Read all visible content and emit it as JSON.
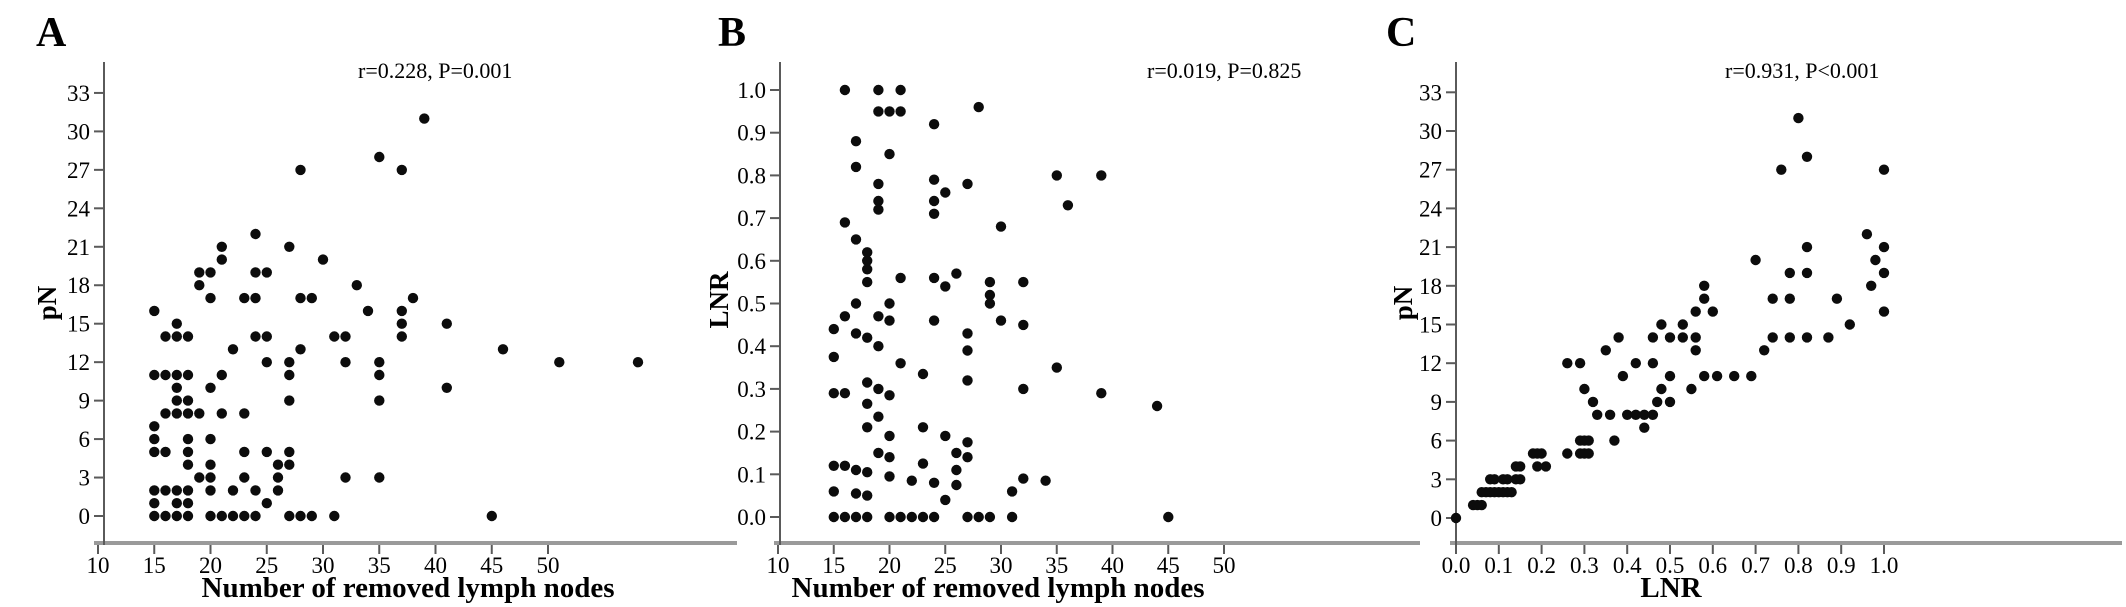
{
  "figure": {
    "background": "#ffffff",
    "dot_color": "#0c0c0c",
    "baseline_color": "#9a9a9a",
    "axis_color": "#5a5a5a",
    "text_color": "#000000"
  },
  "chart_data": [
    {
      "id": "A",
      "type": "scatter",
      "panel_label": "A",
      "annotation": "r=0.228,  P=0.001",
      "xlabel": "Number of removed lymph nodes",
      "ylabel": "pN",
      "xlim": [
        10,
        50
      ],
      "ylim": [
        0,
        33
      ],
      "xtick_labels": [
        "10",
        "15",
        "20",
        "25",
        "30",
        "35",
        "40",
        "45",
        "50"
      ],
      "xtick_values": [
        10,
        15,
        20,
        25,
        30,
        35,
        40,
        45,
        50
      ],
      "ytick_labels": [
        "0",
        "3",
        "6",
        "9",
        "12",
        "15",
        "18",
        "21",
        "24",
        "27",
        "30",
        "33"
      ],
      "ytick_values": [
        0,
        3,
        6,
        9,
        12,
        15,
        18,
        21,
        24,
        27,
        30,
        33
      ],
      "grid": false,
      "points": [
        [
          15,
          0
        ],
        [
          16,
          0
        ],
        [
          17,
          0
        ],
        [
          18,
          0
        ],
        [
          20,
          0
        ],
        [
          21,
          0
        ],
        [
          22,
          0
        ],
        [
          23,
          0
        ],
        [
          24,
          0
        ],
        [
          27,
          0
        ],
        [
          28,
          0
        ],
        [
          29,
          0
        ],
        [
          31,
          0
        ],
        [
          45,
          0
        ],
        [
          15,
          1
        ],
        [
          17,
          1
        ],
        [
          18,
          1
        ],
        [
          25,
          1
        ],
        [
          15,
          2
        ],
        [
          16,
          2
        ],
        [
          17,
          2
        ],
        [
          18,
          2
        ],
        [
          20,
          2
        ],
        [
          22,
          2
        ],
        [
          24,
          2
        ],
        [
          26,
          2
        ],
        [
          19,
          3
        ],
        [
          20,
          3
        ],
        [
          23,
          3
        ],
        [
          26,
          3
        ],
        [
          32,
          3
        ],
        [
          35,
          3
        ],
        [
          18,
          4
        ],
        [
          20,
          4
        ],
        [
          26,
          4
        ],
        [
          27,
          4
        ],
        [
          15,
          5
        ],
        [
          16,
          5
        ],
        [
          18,
          5
        ],
        [
          23,
          5
        ],
        [
          25,
          5
        ],
        [
          27,
          5
        ],
        [
          15,
          6
        ],
        [
          18,
          6
        ],
        [
          20,
          6
        ],
        [
          15,
          7
        ],
        [
          16,
          8
        ],
        [
          17,
          8
        ],
        [
          18,
          8
        ],
        [
          19,
          8
        ],
        [
          21,
          8
        ],
        [
          23,
          8
        ],
        [
          17,
          9
        ],
        [
          18,
          9
        ],
        [
          27,
          9
        ],
        [
          35,
          9
        ],
        [
          17,
          10
        ],
        [
          20,
          10
        ],
        [
          41,
          10
        ],
        [
          15,
          11
        ],
        [
          16,
          11
        ],
        [
          17,
          11
        ],
        [
          18,
          11
        ],
        [
          21,
          11
        ],
        [
          27,
          11
        ],
        [
          35,
          11
        ],
        [
          25,
          12
        ],
        [
          27,
          12
        ],
        [
          32,
          12
        ],
        [
          35,
          12
        ],
        [
          51,
          12
        ],
        [
          58,
          12
        ],
        [
          22,
          13
        ],
        [
          28,
          13
        ],
        [
          46,
          13
        ],
        [
          16,
          14
        ],
        [
          17,
          14
        ],
        [
          18,
          14
        ],
        [
          24,
          14
        ],
        [
          25,
          14
        ],
        [
          31,
          14
        ],
        [
          32,
          14
        ],
        [
          37,
          14
        ],
        [
          17,
          15
        ],
        [
          37,
          15
        ],
        [
          41,
          15
        ],
        [
          15,
          16
        ],
        [
          34,
          16
        ],
        [
          37,
          16
        ],
        [
          20,
          17
        ],
        [
          23,
          17
        ],
        [
          24,
          17
        ],
        [
          28,
          17
        ],
        [
          29,
          17
        ],
        [
          38,
          17
        ],
        [
          19,
          18
        ],
        [
          33,
          18
        ],
        [
          19,
          19
        ],
        [
          20,
          19
        ],
        [
          24,
          19
        ],
        [
          25,
          19
        ],
        [
          21,
          20
        ],
        [
          30,
          20
        ],
        [
          21,
          21
        ],
        [
          27,
          21
        ],
        [
          24,
          22
        ],
        [
          28,
          27
        ],
        [
          37,
          27
        ],
        [
          35,
          28
        ],
        [
          39,
          31
        ]
      ]
    },
    {
      "id": "B",
      "type": "scatter",
      "panel_label": "B",
      "annotation": "r=0.019,  P=0.825",
      "xlabel": "Number of removed lymph nodes",
      "ylabel": "LNR",
      "xlim": [
        10,
        50
      ],
      "ylim": [
        0,
        1.0
      ],
      "xtick_labels": [
        "10",
        "15",
        "20",
        "25",
        "30",
        "35",
        "40",
        "45",
        "50"
      ],
      "xtick_values": [
        10,
        15,
        20,
        25,
        30,
        35,
        40,
        45,
        50
      ],
      "ytick_labels": [
        "0.0",
        "0.1",
        "0.2",
        "0.3",
        "0.4",
        "0.5",
        "0.6",
        "0.7",
        "0.8",
        "0.9",
        "1.0"
      ],
      "ytick_values": [
        0,
        0.1,
        0.2,
        0.3,
        0.4,
        0.5,
        0.6,
        0.7,
        0.8,
        0.9,
        1.0
      ],
      "grid": false,
      "points": [
        [
          15,
          0
        ],
        [
          16,
          0
        ],
        [
          17,
          0
        ],
        [
          18,
          0
        ],
        [
          20,
          0
        ],
        [
          21,
          0
        ],
        [
          22,
          0
        ],
        [
          23,
          0
        ],
        [
          24,
          0
        ],
        [
          27,
          0
        ],
        [
          28,
          0
        ],
        [
          29,
          0
        ],
        [
          31,
          0
        ],
        [
          45,
          0
        ],
        [
          25,
          0.04
        ],
        [
          15,
          0.06
        ],
        [
          17,
          0.055
        ],
        [
          18,
          0.05
        ],
        [
          31,
          0.06
        ],
        [
          20,
          0.095
        ],
        [
          22,
          0.085
        ],
        [
          24,
          0.08
        ],
        [
          26,
          0.075
        ],
        [
          32,
          0.09
        ],
        [
          34,
          0.085
        ],
        [
          15,
          0.12
        ],
        [
          16,
          0.12
        ],
        [
          17,
          0.11
        ],
        [
          18,
          0.105
        ],
        [
          23,
          0.125
        ],
        [
          26,
          0.11
        ],
        [
          19,
          0.15
        ],
        [
          20,
          0.14
        ],
        [
          26,
          0.15
        ],
        [
          27,
          0.14
        ],
        [
          20,
          0.19
        ],
        [
          25,
          0.19
        ],
        [
          27,
          0.175
        ],
        [
          18,
          0.21
        ],
        [
          23,
          0.21
        ],
        [
          19,
          0.235
        ],
        [
          18,
          0.265
        ],
        [
          44,
          0.26
        ],
        [
          15,
          0.29
        ],
        [
          16,
          0.29
        ],
        [
          18,
          0.315
        ],
        [
          19,
          0.3
        ],
        [
          20,
          0.285
        ],
        [
          27,
          0.32
        ],
        [
          32,
          0.3
        ],
        [
          39,
          0.29
        ],
        [
          15,
          0.375
        ],
        [
          21,
          0.36
        ],
        [
          23,
          0.335
        ],
        [
          35,
          0.35
        ],
        [
          15,
          0.44
        ],
        [
          17,
          0.43
        ],
        [
          18,
          0.42
        ],
        [
          19,
          0.4
        ],
        [
          27,
          0.43
        ],
        [
          27,
          0.39
        ],
        [
          16,
          0.47
        ],
        [
          19,
          0.47
        ],
        [
          20,
          0.46
        ],
        [
          24,
          0.46
        ],
        [
          30,
          0.46
        ],
        [
          32,
          0.45
        ],
        [
          17,
          0.5
        ],
        [
          20,
          0.5
        ],
        [
          29,
          0.52
        ],
        [
          29,
          0.5
        ],
        [
          18,
          0.55
        ],
        [
          21,
          0.56
        ],
        [
          24,
          0.56
        ],
        [
          25,
          0.54
        ],
        [
          29,
          0.55
        ],
        [
          32,
          0.55
        ],
        [
          18,
          0.58
        ],
        [
          26,
          0.57
        ],
        [
          18,
          0.6
        ],
        [
          18,
          0.62
        ],
        [
          17,
          0.65
        ],
        [
          16,
          0.69
        ],
        [
          30,
          0.68
        ],
        [
          19,
          0.72
        ],
        [
          24,
          0.71
        ],
        [
          19,
          0.74
        ],
        [
          24,
          0.74
        ],
        [
          36,
          0.73
        ],
        [
          25,
          0.76
        ],
        [
          19,
          0.78
        ],
        [
          24,
          0.79
        ],
        [
          27,
          0.78
        ],
        [
          35,
          0.8
        ],
        [
          39,
          0.8
        ],
        [
          17,
          0.82
        ],
        [
          20,
          0.85
        ],
        [
          17,
          0.88
        ],
        [
          24,
          0.92
        ],
        [
          19,
          0.95
        ],
        [
          20,
          0.95
        ],
        [
          21,
          0.95
        ],
        [
          28,
          0.96
        ],
        [
          16,
          1.0
        ],
        [
          19,
          1.0
        ],
        [
          21,
          1.0
        ]
      ]
    },
    {
      "id": "C",
      "type": "scatter",
      "panel_label": "C",
      "annotation": "r=0.931,  P<0.001",
      "xlabel": "LNR",
      "ylabel": "pN",
      "xlim": [
        0,
        1.0
      ],
      "ylim": [
        0,
        33
      ],
      "xtick_labels": [
        "0.0",
        "0.1",
        "0.2",
        "0.3",
        "0.4",
        "0.5",
        "0.6",
        "0.7",
        "0.8",
        "0.9",
        "1.0"
      ],
      "xtick_values": [
        0,
        0.1,
        0.2,
        0.3,
        0.4,
        0.5,
        0.6,
        0.7,
        0.8,
        0.9,
        1.0
      ],
      "ytick_labels": [
        "0",
        "3",
        "6",
        "9",
        "12",
        "15",
        "18",
        "21",
        "24",
        "27",
        "30",
        "33"
      ],
      "ytick_values": [
        0,
        3,
        6,
        9,
        12,
        15,
        18,
        21,
        24,
        27,
        30,
        33
      ],
      "grid": false,
      "points": [
        [
          0,
          0
        ],
        [
          0.04,
          1
        ],
        [
          0.05,
          1
        ],
        [
          0.06,
          1
        ],
        [
          0.06,
          2
        ],
        [
          0.07,
          2
        ],
        [
          0.08,
          2
        ],
        [
          0.09,
          2
        ],
        [
          0.1,
          2
        ],
        [
          0.11,
          2
        ],
        [
          0.12,
          2
        ],
        [
          0.13,
          2
        ],
        [
          0.08,
          3
        ],
        [
          0.09,
          3
        ],
        [
          0.11,
          3
        ],
        [
          0.12,
          3
        ],
        [
          0.14,
          3
        ],
        [
          0.15,
          3
        ],
        [
          0.14,
          4
        ],
        [
          0.15,
          4
        ],
        [
          0.19,
          4
        ],
        [
          0.21,
          4
        ],
        [
          0.18,
          5
        ],
        [
          0.19,
          5
        ],
        [
          0.2,
          5
        ],
        [
          0.26,
          5
        ],
        [
          0.29,
          5
        ],
        [
          0.3,
          5
        ],
        [
          0.31,
          5
        ],
        [
          0.29,
          6
        ],
        [
          0.3,
          6
        ],
        [
          0.31,
          6
        ],
        [
          0.37,
          6
        ],
        [
          0.44,
          7
        ],
        [
          0.33,
          8
        ],
        [
          0.36,
          8
        ],
        [
          0.4,
          8
        ],
        [
          0.42,
          8
        ],
        [
          0.44,
          8
        ],
        [
          0.46,
          8
        ],
        [
          0.32,
          9
        ],
        [
          0.47,
          9
        ],
        [
          0.5,
          9
        ],
        [
          0.3,
          10
        ],
        [
          0.48,
          10
        ],
        [
          0.55,
          10
        ],
        [
          0.39,
          11
        ],
        [
          0.5,
          11
        ],
        [
          0.58,
          11
        ],
        [
          0.61,
          11
        ],
        [
          0.65,
          11
        ],
        [
          0.69,
          11
        ],
        [
          0.26,
          12
        ],
        [
          0.29,
          12
        ],
        [
          0.42,
          12
        ],
        [
          0.46,
          12
        ],
        [
          0.35,
          13
        ],
        [
          0.56,
          13
        ],
        [
          0.72,
          13
        ],
        [
          0.38,
          14
        ],
        [
          0.46,
          14
        ],
        [
          0.5,
          14
        ],
        [
          0.53,
          14
        ],
        [
          0.56,
          14
        ],
        [
          0.74,
          14
        ],
        [
          0.78,
          14
        ],
        [
          0.82,
          14
        ],
        [
          0.87,
          14
        ],
        [
          0.48,
          15
        ],
        [
          0.53,
          15
        ],
        [
          0.92,
          15
        ],
        [
          0.56,
          16
        ],
        [
          0.6,
          16
        ],
        [
          1.0,
          16
        ],
        [
          0.58,
          17
        ],
        [
          0.74,
          17
        ],
        [
          0.78,
          17
        ],
        [
          0.89,
          17
        ],
        [
          0.58,
          18
        ],
        [
          0.97,
          18
        ],
        [
          0.78,
          19
        ],
        [
          0.82,
          19
        ],
        [
          1.0,
          19
        ],
        [
          0.7,
          20
        ],
        [
          0.98,
          20
        ],
        [
          0.82,
          21
        ],
        [
          1.0,
          21
        ],
        [
          0.96,
          22
        ],
        [
          0.76,
          27
        ],
        [
          1.0,
          27
        ],
        [
          0.82,
          28
        ],
        [
          0.8,
          31
        ]
      ]
    }
  ]
}
